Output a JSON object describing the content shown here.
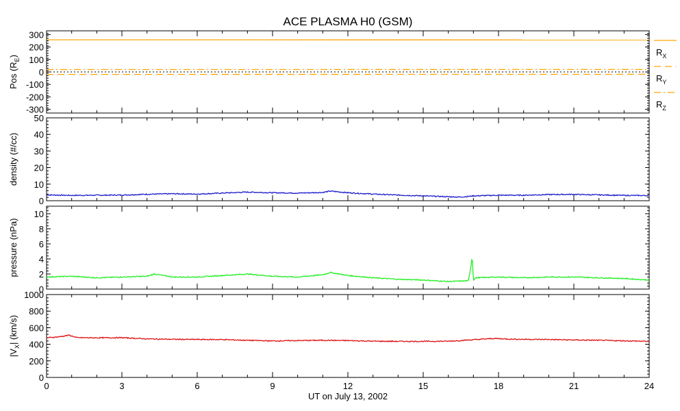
{
  "chart_data": {
    "type": "line",
    "title": "ACE PLASMA H0 (GSM)",
    "xlabel": "UT on July 13, 2002",
    "xlim": [
      0,
      24
    ],
    "xticks": [
      "0",
      "3",
      "6",
      "9",
      "12",
      "15",
      "18",
      "21",
      "24"
    ],
    "panels": [
      {
        "id": "pos",
        "ylabel": "Pos (R",
        "ylabel_sub": "E",
        "ylabel_end": ")",
        "ylim": [
          -330,
          330
        ],
        "yticks": [
          "300",
          "200",
          "100",
          "0",
          "-100",
          "-200",
          "-300"
        ],
        "yticks_values": [
          300,
          200,
          100,
          0,
          -100,
          -200,
          -300
        ],
        "zero_line": true,
        "series": [
          {
            "name": "R",
            "sub": "X",
            "color": "#ffa500",
            "dash": "solid",
            "x": [
              0,
              24
            ],
            "values": [
              258,
              257
            ]
          },
          {
            "name": "R",
            "sub": "Y",
            "color": "#ffa500",
            "dash": "dashed",
            "x": [
              0,
              24
            ],
            "values": [
              -20,
              -19
            ]
          },
          {
            "name": "R",
            "sub": "Z",
            "color": "#ffa500",
            "dash": "dashdot",
            "x": [
              0,
              24
            ],
            "values": [
              19,
              20
            ]
          }
        ]
      },
      {
        "id": "density",
        "ylabel": "density (#/cc)",
        "ylim": [
          0,
          50
        ],
        "yticks": [
          "50",
          "40",
          "30",
          "20",
          "10",
          "0"
        ],
        "yticks_values": [
          50,
          40,
          30,
          20,
          10,
          0
        ],
        "series": [
          {
            "color": "#1c1ccc",
            "x": [
              0,
              1,
              2,
              3,
              4,
              5,
              6,
              7,
              8,
              9,
              10,
              11,
              11.3,
              12,
              13,
              14,
              15,
              16,
              16.5,
              17,
              18,
              19,
              20,
              21,
              22,
              23,
              24
            ],
            "values": [
              3.5,
              3.2,
              3.3,
              3.4,
              3.9,
              4.2,
              4.0,
              4.6,
              5.2,
              4.8,
              4.6,
              5.0,
              5.8,
              4.8,
              4.0,
              3.4,
              2.9,
              2.4,
              2.2,
              2.9,
              3.3,
              3.3,
              3.7,
              3.8,
              3.5,
              3.2,
              3.1
            ]
          }
        ]
      },
      {
        "id": "pressure",
        "ylabel": "pressure (nPa)",
        "ylim": [
          0,
          11
        ],
        "yticks": [
          "10",
          "8",
          "6",
          "4",
          "2",
          "0"
        ],
        "yticks_values": [
          10,
          8,
          6,
          4,
          2,
          0
        ],
        "series": [
          {
            "color": "#22ee22",
            "x": [
              0,
              1,
              2,
              3,
              4,
              4.3,
              5,
              6,
              7,
              8,
              9,
              10,
              11,
              11.3,
              12,
              13,
              14,
              15,
              16,
              16.8,
              16.9,
              16.95,
              17.0,
              17.1,
              18,
              19,
              20,
              21,
              22,
              23,
              24
            ],
            "values": [
              1.6,
              1.7,
              1.5,
              1.6,
              1.7,
              2.0,
              1.6,
              1.6,
              1.8,
              2.0,
              1.7,
              1.6,
              1.9,
              2.2,
              1.8,
              1.5,
              1.3,
              1.2,
              1.0,
              1.1,
              3.0,
              4.4,
              1.2,
              1.5,
              1.6,
              1.5,
              1.6,
              1.6,
              1.5,
              1.4,
              1.2
            ]
          }
        ]
      },
      {
        "id": "vx",
        "ylabel": "|V",
        "ylabel_sub": "X",
        "ylabel_end": "| (km/s)",
        "ylim": [
          0,
          1000
        ],
        "yticks": [
          "1000",
          "800",
          "600",
          "400",
          "200",
          "0"
        ],
        "yticks_values": [
          1000,
          800,
          600,
          400,
          200,
          0
        ],
        "series": [
          {
            "color": "#dd1111",
            "x": [
              0,
              0.5,
              0.9,
              1.2,
              2,
              3,
              4,
              5,
              6,
              7,
              8,
              9,
              10,
              11,
              12,
              13,
              14,
              15,
              16,
              17,
              17.8,
              18.5,
              19,
              20,
              21,
              22,
              23,
              24
            ],
            "values": [
              478,
              490,
              510,
              480,
              478,
              480,
              465,
              460,
              458,
              457,
              448,
              440,
              445,
              448,
              445,
              437,
              435,
              435,
              437,
              455,
              470,
              462,
              460,
              458,
              452,
              448,
              442,
              435
            ]
          }
        ]
      }
    ]
  }
}
